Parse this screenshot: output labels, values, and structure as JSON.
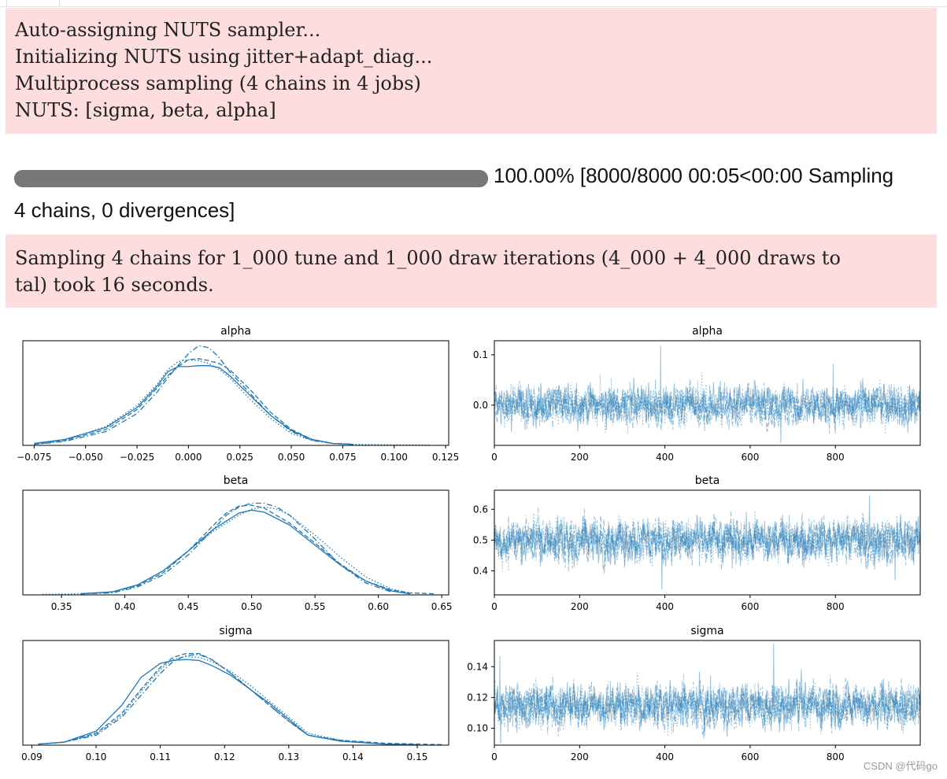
{
  "stderr1": {
    "lines": [
      "Auto-assigning NUTS sampler...",
      "Initializing NUTS using jitter+adapt_diag...",
      "Multiprocess sampling (4 chains in 4 jobs)",
      "NUTS: [sigma, beta, alpha]"
    ]
  },
  "progress": {
    "fraction": 1.0,
    "status_line1": "100.00% [8000/8000 00:05<00:00 Sampling",
    "status_line2": "4 chains, 0 divergences]"
  },
  "stderr2": {
    "lines": [
      "Sampling 4 chains for 1_000 tune and 1_000 draw iterations (4_000 + 4_000 draws to",
      "tal) took 16 seconds."
    ]
  },
  "chart_data": [
    {
      "type": "line",
      "title": "alpha",
      "kind": "density",
      "x_ticks": [
        -0.075,
        -0.05,
        -0.025,
        0.0,
        0.025,
        0.05,
        0.075,
        0.1,
        0.125
      ],
      "x_tick_labels": [
        "−0.075",
        "−0.050",
        "−0.025",
        "0.000",
        "0.025",
        "0.050",
        "0.075",
        "0.100",
        "0.125"
      ],
      "xlim": [
        -0.0805,
        0.1265
      ],
      "ylim": [
        0,
        1.05
      ],
      "series": [
        {
          "name": "chain 0",
          "style": "solid",
          "x": [
            -0.075,
            -0.06,
            -0.04,
            -0.025,
            -0.015,
            -0.01,
            -0.005,
            0,
            0.005,
            0.01,
            0.015,
            0.02,
            0.03,
            0.04,
            0.05,
            0.06,
            0.07,
            0.08
          ],
          "values": [
            0.02,
            0.06,
            0.18,
            0.38,
            0.6,
            0.74,
            0.79,
            0.79,
            0.8,
            0.8,
            0.78,
            0.7,
            0.5,
            0.3,
            0.15,
            0.06,
            0.02,
            0.01
          ]
        },
        {
          "name": "chain 1",
          "style": "dashed",
          "x": [
            -0.075,
            -0.06,
            -0.04,
            -0.025,
            -0.015,
            -0.01,
            -0.005,
            0,
            0.005,
            0.01,
            0.015,
            0.02,
            0.03,
            0.04,
            0.05,
            0.06,
            0.07,
            0.08
          ],
          "values": [
            0.01,
            0.05,
            0.16,
            0.36,
            0.58,
            0.7,
            0.79,
            0.86,
            0.87,
            0.85,
            0.82,
            0.76,
            0.56,
            0.33,
            0.16,
            0.06,
            0.02,
            0.01
          ]
        },
        {
          "name": "chain 2",
          "style": "dashdot",
          "x": [
            -0.075,
            -0.06,
            -0.04,
            -0.025,
            -0.015,
            -0.01,
            -0.005,
            0,
            0.005,
            0.01,
            0.015,
            0.02,
            0.03,
            0.04,
            0.05,
            0.06,
            0.07,
            0.08
          ],
          "values": [
            0.01,
            0.04,
            0.14,
            0.32,
            0.54,
            0.68,
            0.8,
            0.92,
            1.0,
            0.98,
            0.88,
            0.74,
            0.52,
            0.3,
            0.14,
            0.05,
            0.02,
            0.01
          ]
        },
        {
          "name": "chain 3",
          "style": "dotted",
          "x": [
            -0.075,
            -0.06,
            -0.04,
            -0.025,
            -0.015,
            -0.01,
            -0.005,
            0,
            0.005,
            0.01,
            0.015,
            0.02,
            0.03,
            0.04,
            0.05,
            0.06,
            0.07,
            0.08,
            0.1,
            0.118
          ],
          "values": [
            0.01,
            0.05,
            0.19,
            0.4,
            0.62,
            0.76,
            0.84,
            0.86,
            0.85,
            0.82,
            0.76,
            0.68,
            0.46,
            0.27,
            0.12,
            0.05,
            0.02,
            0.01,
            0.005,
            0.002
          ]
        }
      ]
    },
    {
      "type": "line",
      "title": "alpha",
      "kind": "trace",
      "x_ticks": [
        0,
        200,
        400,
        600,
        800
      ],
      "x_tick_labels": [
        "0",
        "200",
        "400",
        "600",
        "800"
      ],
      "y_ticks": [
        0.0,
        0.1
      ],
      "y_tick_labels": [
        "0.0",
        "0.1"
      ],
      "xlim": [
        0,
        999
      ],
      "ylim": [
        -0.08,
        0.128
      ],
      "n_draws": 1000,
      "n_chains": 4,
      "center": 0.0,
      "spread": 0.025,
      "spikes": [
        {
          "x": 390,
          "value": 0.118
        },
        {
          "x": 795,
          "value": 0.082
        },
        {
          "x": 672,
          "value": -0.075
        }
      ]
    },
    {
      "type": "line",
      "title": "beta",
      "kind": "density",
      "x_ticks": [
        0.35,
        0.4,
        0.45,
        0.5,
        0.55,
        0.6,
        0.65
      ],
      "x_tick_labels": [
        "0.35",
        "0.40",
        "0.45",
        "0.50",
        "0.55",
        "0.60",
        "0.65"
      ],
      "xlim": [
        0.3195,
        0.6555
      ],
      "ylim": [
        0,
        1.05
      ],
      "series": [
        {
          "name": "chain 0",
          "style": "solid",
          "x": [
            0.365,
            0.39,
            0.41,
            0.43,
            0.45,
            0.47,
            0.49,
            0.5,
            0.51,
            0.53,
            0.55,
            0.57,
            0.59,
            0.61,
            0.625
          ],
          "values": [
            0.01,
            0.03,
            0.1,
            0.24,
            0.44,
            0.66,
            0.82,
            0.85,
            0.83,
            0.7,
            0.5,
            0.3,
            0.14,
            0.04,
            0.01
          ]
        },
        {
          "name": "chain 1",
          "style": "dashed",
          "x": [
            0.365,
            0.39,
            0.41,
            0.43,
            0.45,
            0.47,
            0.48,
            0.49,
            0.5,
            0.51,
            0.53,
            0.55,
            0.57,
            0.59,
            0.61,
            0.625,
            0.645
          ],
          "values": [
            0.01,
            0.03,
            0.09,
            0.22,
            0.44,
            0.7,
            0.82,
            0.89,
            0.9,
            0.87,
            0.72,
            0.52,
            0.31,
            0.14,
            0.05,
            0.02,
            0.01
          ]
        },
        {
          "name": "chain 2",
          "style": "dashdot",
          "x": [
            0.365,
            0.39,
            0.41,
            0.43,
            0.45,
            0.47,
            0.48,
            0.49,
            0.5,
            0.51,
            0.52,
            0.53,
            0.55,
            0.57,
            0.59,
            0.61
          ],
          "values": [
            0.01,
            0.02,
            0.08,
            0.2,
            0.4,
            0.66,
            0.8,
            0.88,
            0.92,
            0.92,
            0.88,
            0.8,
            0.56,
            0.3,
            0.12,
            0.03
          ]
        },
        {
          "name": "chain 3",
          "style": "dotted",
          "x": [
            0.335,
            0.36,
            0.39,
            0.41,
            0.43,
            0.45,
            0.47,
            0.49,
            0.5,
            0.51,
            0.52,
            0.53,
            0.55,
            0.57,
            0.59,
            0.61,
            0.625
          ],
          "values": [
            0.005,
            0.01,
            0.03,
            0.1,
            0.24,
            0.44,
            0.64,
            0.8,
            0.86,
            0.88,
            0.86,
            0.8,
            0.6,
            0.38,
            0.18,
            0.06,
            0.02
          ]
        }
      ]
    },
    {
      "type": "line",
      "title": "beta",
      "kind": "trace",
      "x_ticks": [
        0,
        200,
        400,
        600,
        800
      ],
      "x_tick_labels": [
        "0",
        "200",
        "400",
        "600",
        "800"
      ],
      "y_ticks": [
        0.4,
        0.5,
        0.6
      ],
      "y_tick_labels": [
        "0.4",
        "0.5",
        "0.6"
      ],
      "xlim": [
        0,
        999
      ],
      "ylim": [
        0.322,
        0.662
      ],
      "n_draws": 1000,
      "n_chains": 4,
      "center": 0.5,
      "spread": 0.045,
      "spikes": [
        {
          "x": 393,
          "value": 0.34
        },
        {
          "x": 880,
          "value": 0.645
        },
        {
          "x": 940,
          "value": 0.37
        }
      ]
    },
    {
      "type": "line",
      "title": "sigma",
      "kind": "density",
      "x_ticks": [
        0.09,
        0.1,
        0.11,
        0.12,
        0.13,
        0.14,
        0.15
      ],
      "x_tick_labels": [
        "0.09",
        "0.10",
        "0.11",
        "0.12",
        "0.13",
        "0.14",
        "0.15"
      ],
      "xlim": [
        0.0886,
        0.1549
      ],
      "ylim": [
        0,
        1.05
      ],
      "series": [
        {
          "name": "chain 0",
          "style": "solid",
          "x": [
            0.091,
            0.095,
            0.1,
            0.104,
            0.107,
            0.11,
            0.112,
            0.114,
            0.116,
            0.118,
            0.121,
            0.124,
            0.127,
            0.13,
            0.133,
            0.138,
            0.145,
            0.15
          ],
          "values": [
            0.01,
            0.03,
            0.14,
            0.4,
            0.68,
            0.82,
            0.85,
            0.86,
            0.85,
            0.8,
            0.7,
            0.56,
            0.42,
            0.26,
            0.1,
            0.04,
            0.01,
            0.005
          ]
        },
        {
          "name": "chain 1",
          "style": "dashed",
          "x": [
            0.091,
            0.095,
            0.1,
            0.104,
            0.107,
            0.11,
            0.112,
            0.114,
            0.116,
            0.118,
            0.121,
            0.124,
            0.127,
            0.13,
            0.133,
            0.138,
            0.145,
            0.154
          ],
          "values": [
            0.01,
            0.03,
            0.12,
            0.32,
            0.56,
            0.78,
            0.88,
            0.92,
            0.92,
            0.86,
            0.72,
            0.56,
            0.4,
            0.24,
            0.1,
            0.05,
            0.02,
            0.005
          ]
        },
        {
          "name": "chain 2",
          "style": "dashdot",
          "x": [
            0.091,
            0.095,
            0.1,
            0.104,
            0.107,
            0.11,
            0.112,
            0.114,
            0.116,
            0.118,
            0.121,
            0.124,
            0.127,
            0.13,
            0.133,
            0.138,
            0.145
          ],
          "values": [
            0.01,
            0.03,
            0.1,
            0.28,
            0.5,
            0.72,
            0.84,
            0.9,
            0.91,
            0.86,
            0.72,
            0.56,
            0.4,
            0.24,
            0.1,
            0.04,
            0.01
          ]
        },
        {
          "name": "chain 3",
          "style": "dotted",
          "x": [
            0.091,
            0.095,
            0.1,
            0.104,
            0.107,
            0.11,
            0.112,
            0.114,
            0.116,
            0.118,
            0.121,
            0.124,
            0.127,
            0.13,
            0.133,
            0.138,
            0.145
          ],
          "values": [
            0.01,
            0.03,
            0.11,
            0.3,
            0.54,
            0.76,
            0.86,
            0.89,
            0.88,
            0.84,
            0.74,
            0.6,
            0.44,
            0.28,
            0.12,
            0.05,
            0.01
          ]
        }
      ]
    },
    {
      "type": "line",
      "title": "sigma",
      "kind": "trace",
      "x_ticks": [
        0,
        200,
        400,
        600,
        800
      ],
      "x_tick_labels": [
        "0",
        "200",
        "400",
        "600",
        "800"
      ],
      "y_ticks": [
        0.1,
        0.12,
        0.14
      ],
      "y_tick_labels": [
        "0.10",
        "0.12",
        "0.14"
      ],
      "xlim": [
        0,
        999
      ],
      "ylim": [
        0.089,
        0.157
      ],
      "n_draws": 1000,
      "n_chains": 4,
      "center": 0.115,
      "spread": 0.009,
      "spikes": [
        {
          "x": 13,
          "value": 0.147
        },
        {
          "x": 655,
          "value": 0.155
        },
        {
          "x": 15,
          "value": 0.09
        }
      ]
    }
  ],
  "watermark": "CSDN @代码go",
  "colors": {
    "line": "#1f77b4",
    "stderr_bg": "#fddddd",
    "progress": "#777777"
  }
}
